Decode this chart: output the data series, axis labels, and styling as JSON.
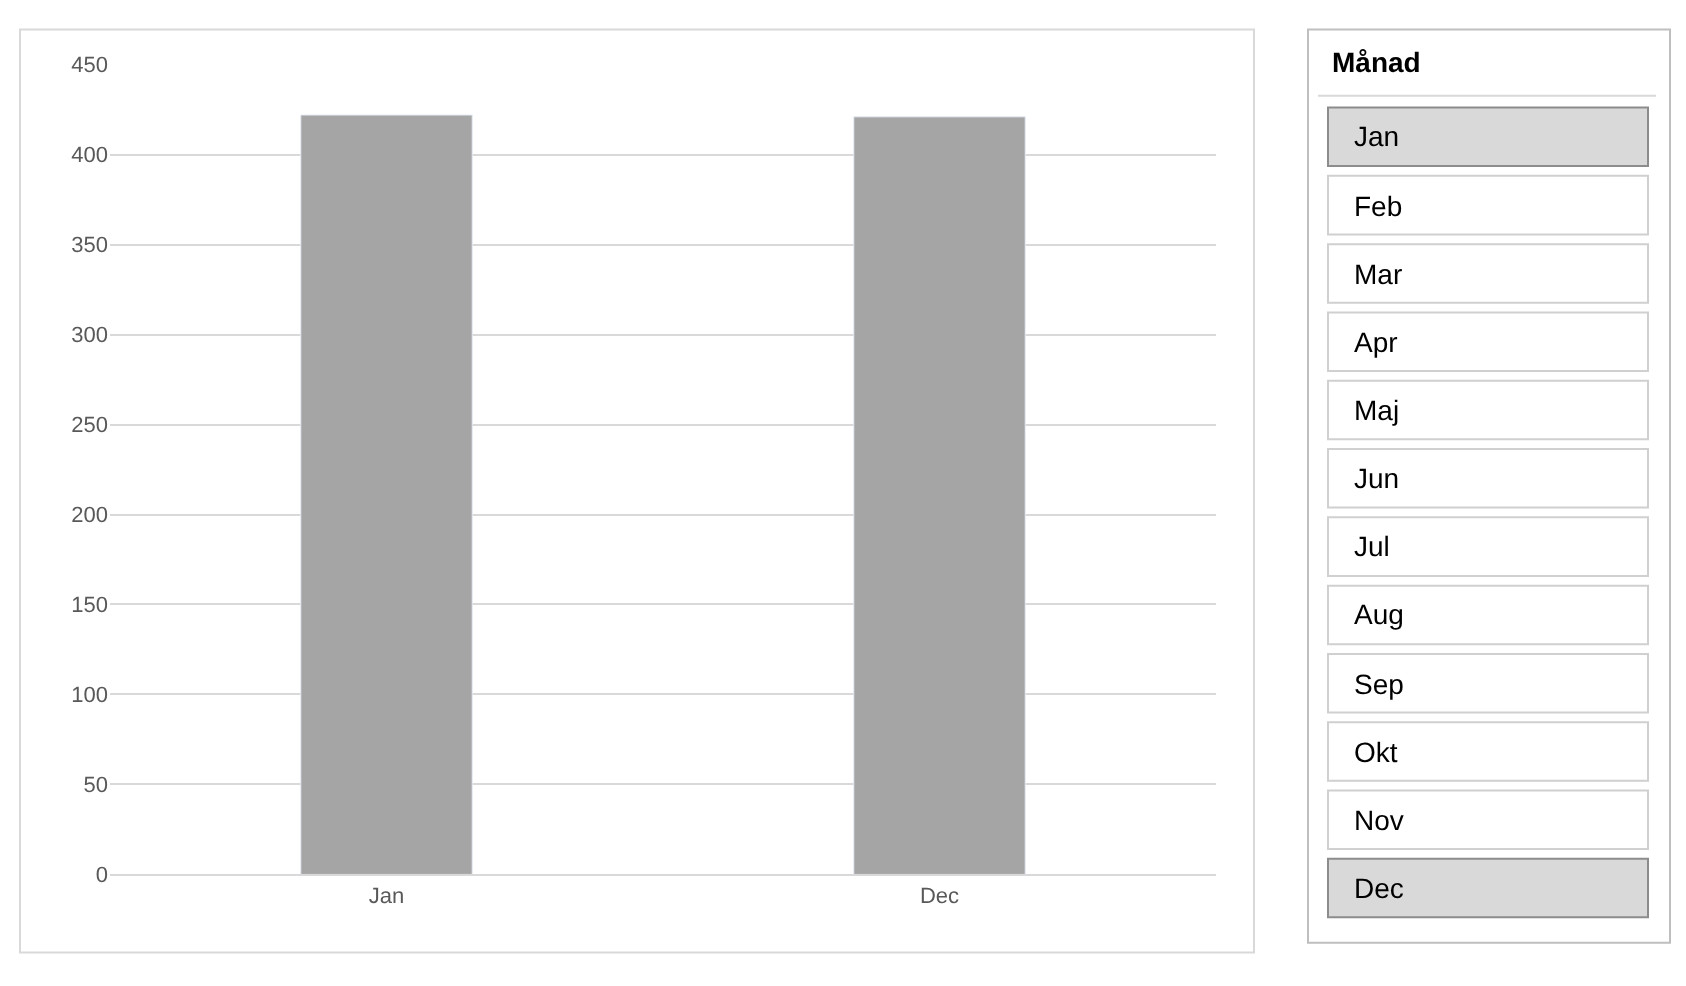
{
  "chart_data": [
    {
      "type": "bar",
      "categories": [
        "Jan",
        "Dec"
      ],
      "values": [
        422,
        421
      ],
      "color": "#a5a5a5",
      "ylim": [
        0,
        450
      ],
      "yticks": [
        0,
        50,
        100,
        150,
        200,
        250,
        300,
        350,
        400,
        450
      ],
      "grid": "y"
    },
    {
      "type": "other",
      "title": "Månad",
      "categories": [
        "Jan",
        "Feb",
        "Mar",
        "Apr",
        "Maj",
        "Jun",
        "Jul",
        "Aug",
        "Sep",
        "Okt",
        "Nov",
        "Dec"
      ],
      "colors": [
        "#d9d9d9",
        "#ffffff",
        "#ffffff",
        "#ffffff",
        "#ffffff",
        "#ffffff",
        "#ffffff",
        "#ffffff",
        "#ffffff",
        "#ffffff",
        "#ffffff",
        "#d9d9d9"
      ]
    }
  ]
}
